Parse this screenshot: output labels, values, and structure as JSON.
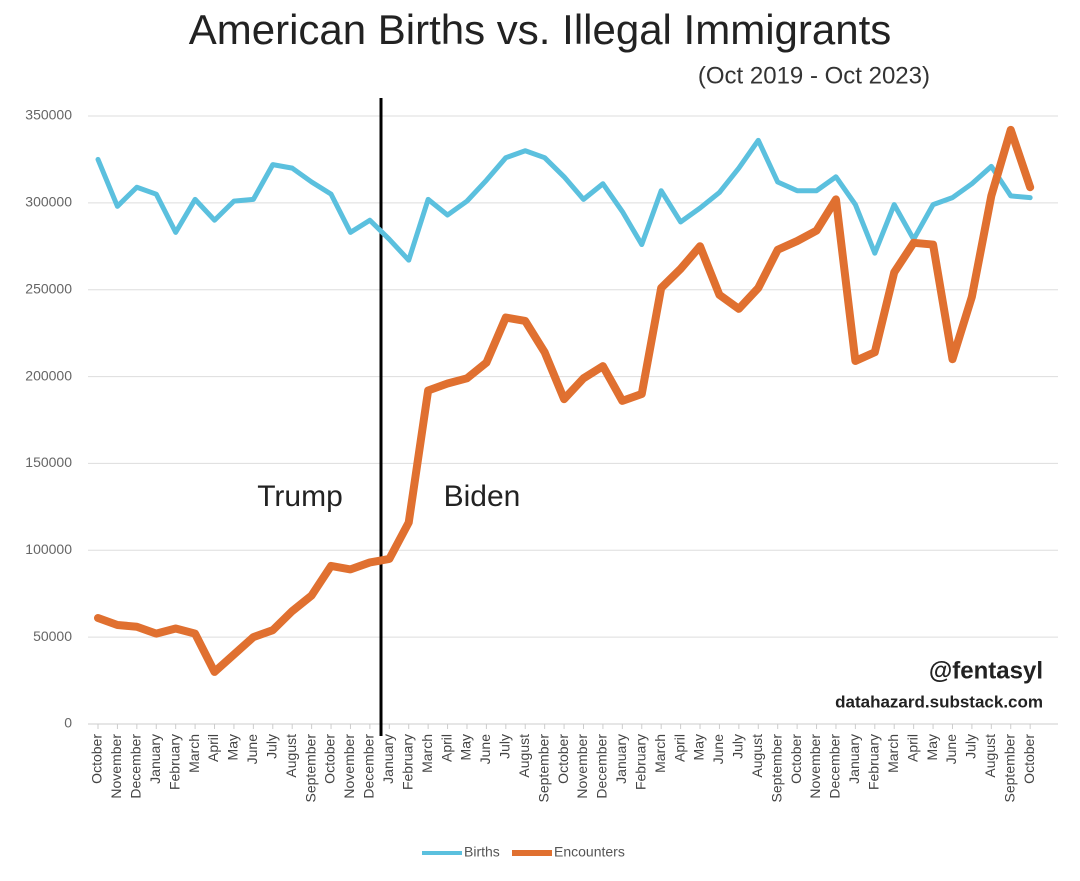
{
  "chart_data": {
    "type": "line",
    "title": "American Births vs. Illegal Immigrants",
    "subtitle": "(Oct 2019 - Oct 2023)",
    "annotations": [
      "Trump",
      "Biden",
      "@fentasyl",
      "datahazard.substack.com"
    ],
    "categories": [
      "October",
      "November",
      "December",
      "January",
      "February",
      "March",
      "April",
      "May",
      "June",
      "July",
      "August",
      "September",
      "October",
      "November",
      "December",
      "January",
      "February",
      "March",
      "April",
      "May",
      "June",
      "July",
      "August",
      "September",
      "October",
      "November",
      "December",
      "January",
      "February",
      "March",
      "April",
      "May",
      "June",
      "July",
      "August",
      "September",
      "October",
      "November",
      "December",
      "January",
      "February",
      "March",
      "April",
      "May",
      "June",
      "July",
      "August",
      "September",
      "October"
    ],
    "series": [
      {
        "name": "Births",
        "color": "#5bc0de",
        "values": [
          325000,
          298000,
          309000,
          305000,
          283000,
          302000,
          290000,
          301000,
          302000,
          322000,
          320000,
          312000,
          305000,
          283000,
          290000,
          279000,
          267000,
          302000,
          293000,
          301000,
          313000,
          326000,
          330000,
          326000,
          315000,
          302000,
          311000,
          295000,
          276000,
          307000,
          289000,
          297000,
          306000,
          320000,
          336000,
          312000,
          307000,
          307000,
          315000,
          299000,
          271000,
          299000,
          279000,
          299000,
          303000,
          311000,
          321000,
          304000,
          303000
        ]
      },
      {
        "name": "Encounters",
        "color": "#e07030",
        "values": [
          61000,
          57000,
          56000,
          52000,
          55000,
          52000,
          30000,
          40000,
          50000,
          54000,
          65000,
          74000,
          91000,
          89000,
          93000,
          95000,
          116000,
          192000,
          196000,
          199000,
          208000,
          234000,
          232000,
          214000,
          187000,
          199000,
          206000,
          186000,
          190000,
          251000,
          262000,
          275000,
          247000,
          239000,
          251000,
          273000,
          278000,
          284000,
          302000,
          209000,
          214000,
          260000,
          277000,
          276000,
          210000,
          246000,
          304000,
          342000,
          309000
        ]
      }
    ],
    "ylim": [
      0,
      350000
    ],
    "yticks": [
      0,
      50000,
      100000,
      150000,
      200000,
      250000,
      300000,
      350000
    ],
    "grid": true
  }
}
